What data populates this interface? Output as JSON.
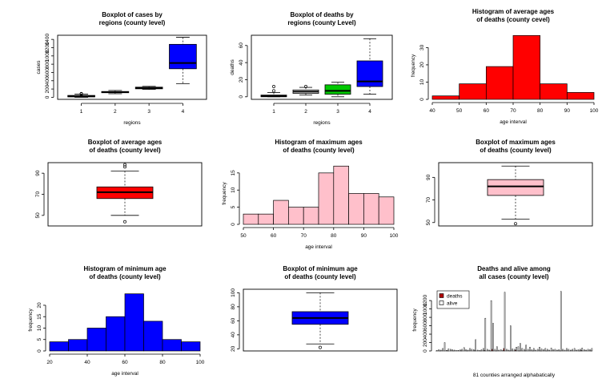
{
  "chart_data": [
    {
      "id": "box_cases_regions",
      "type": "box",
      "title": [
        "Boxplot of cases by",
        "regions (county level)"
      ],
      "xlabel": "regions",
      "ylabel": "cases",
      "categories": [
        "1",
        "2",
        "3",
        "4"
      ],
      "yticks": [
        0,
        200,
        400,
        600,
        800,
        1000,
        1200,
        1400
      ],
      "ylim": [
        -50,
        1500
      ],
      "boxes": [
        {
          "name": "1",
          "min": 0,
          "q1": 10,
          "median": 25,
          "q3": 45,
          "max": 75,
          "outliers": [
            80,
            90
          ],
          "color": "#ffffff"
        },
        {
          "name": "2",
          "min": 85,
          "q1": 110,
          "median": 125,
          "q3": 140,
          "max": 165,
          "outliers": [],
          "color": "#ffffff"
        },
        {
          "name": "3",
          "min": 190,
          "q1": 205,
          "median": 225,
          "q3": 245,
          "max": 265,
          "outliers": [],
          "color": "#ffffff"
        },
        {
          "name": "4",
          "min": 330,
          "q1": 690,
          "median": 830,
          "q3": 1280,
          "max": 1450,
          "outliers": [],
          "color": "#0000ff"
        }
      ]
    },
    {
      "id": "box_deaths_regions",
      "type": "box",
      "title": [
        "Boxplot of deaths by",
        "regions (county Level)"
      ],
      "xlabel": "regions",
      "ylabel": "deaths",
      "categories": [
        "1",
        "2",
        "3",
        "4"
      ],
      "yticks": [
        0,
        20,
        40,
        60
      ],
      "ylim": [
        -3,
        72
      ],
      "boxes": [
        {
          "name": "1",
          "min": 0,
          "q1": 0,
          "median": 1,
          "q3": 2,
          "max": 5,
          "outliers": [
            7,
            12
          ],
          "color": "#ffffff"
        },
        {
          "name": "2",
          "min": 2,
          "q1": 4,
          "median": 6,
          "q3": 8,
          "max": 11,
          "outliers": [
            12
          ],
          "color": "#ffffff"
        },
        {
          "name": "3",
          "min": 0,
          "q1": 3,
          "median": 7,
          "q3": 14,
          "max": 17,
          "outliers": [],
          "color": "#00c800"
        },
        {
          "name": "4",
          "min": 3,
          "q1": 12,
          "median": 18,
          "q3": 42,
          "max": 68,
          "outliers": [],
          "color": "#0000ff"
        }
      ]
    },
    {
      "id": "hist_avg_age",
      "type": "histogram",
      "title": [
        "Histogram of average ages",
        "of deaths (county cevel)"
      ],
      "xlabel": "age interval",
      "ylabel": "frequency",
      "xticks": [
        40,
        50,
        60,
        70,
        80,
        90,
        100
      ],
      "yticks": [
        0,
        10,
        20,
        30
      ],
      "xlim": [
        40,
        100
      ],
      "ylim": [
        0,
        39
      ],
      "bins": [
        [
          40,
          50
        ],
        [
          50,
          60
        ],
        [
          60,
          70
        ],
        [
          70,
          80
        ],
        [
          80,
          90
        ],
        [
          90,
          100
        ]
      ],
      "values": [
        2,
        9,
        19,
        37,
        9,
        4
      ],
      "color": "#ff0000"
    },
    {
      "id": "box_avg_age",
      "type": "box",
      "title": [
        "Boxplot of average ages",
        "of deaths (county level)"
      ],
      "xlabel": "",
      "ylabel": "",
      "categories": [],
      "yticks": [
        50,
        70,
        90
      ],
      "ylim": [
        40,
        100
      ],
      "boxes": [
        {
          "name": "",
          "min": 50,
          "q1": 66,
          "median": 72,
          "q3": 77,
          "max": 92,
          "outliers": [
            44,
            96,
            98
          ],
          "color": "#ff0000"
        }
      ]
    },
    {
      "id": "hist_max_age",
      "type": "histogram",
      "title": [
        "Histogram of maximum ages",
        "of deaths (county level)"
      ],
      "xlabel": "age interval",
      "ylabel": "frequency",
      "xticks": [
        50,
        60,
        70,
        80,
        90,
        100
      ],
      "yticks": [
        0,
        5,
        10,
        15
      ],
      "xlim": [
        50,
        100
      ],
      "ylim": [
        0,
        18
      ],
      "bins": [
        [
          50,
          55
        ],
        [
          55,
          60
        ],
        [
          60,
          65
        ],
        [
          65,
          70
        ],
        [
          70,
          75
        ],
        [
          75,
          80
        ],
        [
          80,
          85
        ],
        [
          85,
          90
        ],
        [
          90,
          95
        ],
        [
          95,
          100
        ]
      ],
      "values": [
        3,
        3,
        7,
        5,
        5,
        15,
        17,
        9,
        9,
        8
      ],
      "color": "#ffc0cb"
    },
    {
      "id": "box_max_age",
      "type": "box",
      "title": [
        "Boxplot of maximum ages",
        "of deaths (county level)"
      ],
      "xlabel": "",
      "ylabel": "",
      "categories": [],
      "yticks": [
        50,
        70,
        90
      ],
      "ylim": [
        47,
        103
      ],
      "boxes": [
        {
          "name": "",
          "min": 53,
          "q1": 74,
          "median": 82,
          "q3": 88,
          "max": 100,
          "outliers": [
            49
          ],
          "color": "#ffc0cb"
        }
      ]
    },
    {
      "id": "hist_min_age",
      "type": "histogram",
      "title": [
        "Histogram of minimum age",
        "of deaths (county level)"
      ],
      "xlabel": "age interval",
      "ylabel": "frequency",
      "xticks": [
        20,
        40,
        60,
        80,
        100
      ],
      "yticks": [
        0,
        5,
        10,
        15,
        20
      ],
      "xlim": [
        20,
        100
      ],
      "ylim": [
        0,
        27
      ],
      "bins": [
        [
          20,
          30
        ],
        [
          30,
          40
        ],
        [
          40,
          50
        ],
        [
          50,
          60
        ],
        [
          60,
          70
        ],
        [
          70,
          80
        ],
        [
          80,
          90
        ],
        [
          90,
          100
        ]
      ],
      "values": [
        4,
        5,
        10,
        15,
        25,
        13,
        5,
        4
      ],
      "color": "#0000ff"
    },
    {
      "id": "box_min_age",
      "type": "box",
      "title": [
        "Boxplot of minimum age",
        "of deaths (county level)"
      ],
      "xlabel": "",
      "ylabel": "",
      "categories": [],
      "yticks": [
        20,
        40,
        60,
        80,
        100
      ],
      "ylim": [
        17,
        105
      ],
      "boxes": [
        {
          "name": "",
          "min": 27,
          "q1": 55,
          "median": 64,
          "q3": 73,
          "max": 100,
          "outliers": [
            22
          ],
          "color": "#0000ff"
        }
      ]
    },
    {
      "id": "bar_deaths_alive",
      "type": "bar",
      "title": [
        "Deaths and alive among",
        "all cases (county level)"
      ],
      "xlabel": "81 counties arranged alphabatically",
      "ylabel": "frequency",
      "yticks": [
        0,
        200,
        400,
        600,
        800,
        1000,
        1200
      ],
      "ylim": [
        0,
        1470
      ],
      "legend": {
        "position": "top-left",
        "entries": [
          "deaths",
          "alive"
        ]
      },
      "series": [
        {
          "name": "deaths",
          "color": "#b00000",
          "values": [
            0,
            0,
            1,
            0,
            0,
            0,
            2,
            0,
            0,
            1,
            0,
            0,
            0,
            1,
            0,
            0,
            1,
            0,
            0,
            0,
            4,
            0,
            0,
            1,
            0,
            10,
            0,
            0,
            1,
            40,
            0,
            1,
            0,
            0,
            0,
            60,
            0,
            0,
            2,
            0,
            0,
            20,
            0,
            1,
            0,
            0,
            1,
            0,
            0,
            0,
            1,
            0,
            0,
            0,
            1,
            0,
            0,
            1,
            0,
            0,
            0,
            0,
            0,
            0,
            2,
            0,
            0,
            0,
            0,
            0,
            0,
            0,
            0,
            0,
            1,
            10,
            0,
            0,
            0,
            0,
            1
          ]
        },
        {
          "name": "alive",
          "color": "#f2f2f2",
          "values": [
            10,
            30,
            20,
            60,
            200,
            15,
            50,
            40,
            30,
            20,
            10,
            15,
            25,
            40,
            80,
            30,
            20,
            60,
            40,
            30,
            270,
            20,
            10,
            30,
            60,
            780,
            40,
            20,
            1200,
            660,
            40,
            100,
            20,
            30,
            10,
            1400,
            40,
            20,
            600,
            50,
            40,
            90,
            100,
            180,
            60,
            40,
            140,
            40,
            90,
            30,
            60,
            20,
            40,
            90,
            50,
            30,
            60,
            40,
            20,
            70,
            30,
            40,
            20,
            30,
            1420,
            40,
            20,
            60,
            40,
            20,
            40,
            60,
            20,
            30,
            40,
            70,
            30,
            20,
            40,
            30,
            60
          ]
        }
      ]
    }
  ]
}
